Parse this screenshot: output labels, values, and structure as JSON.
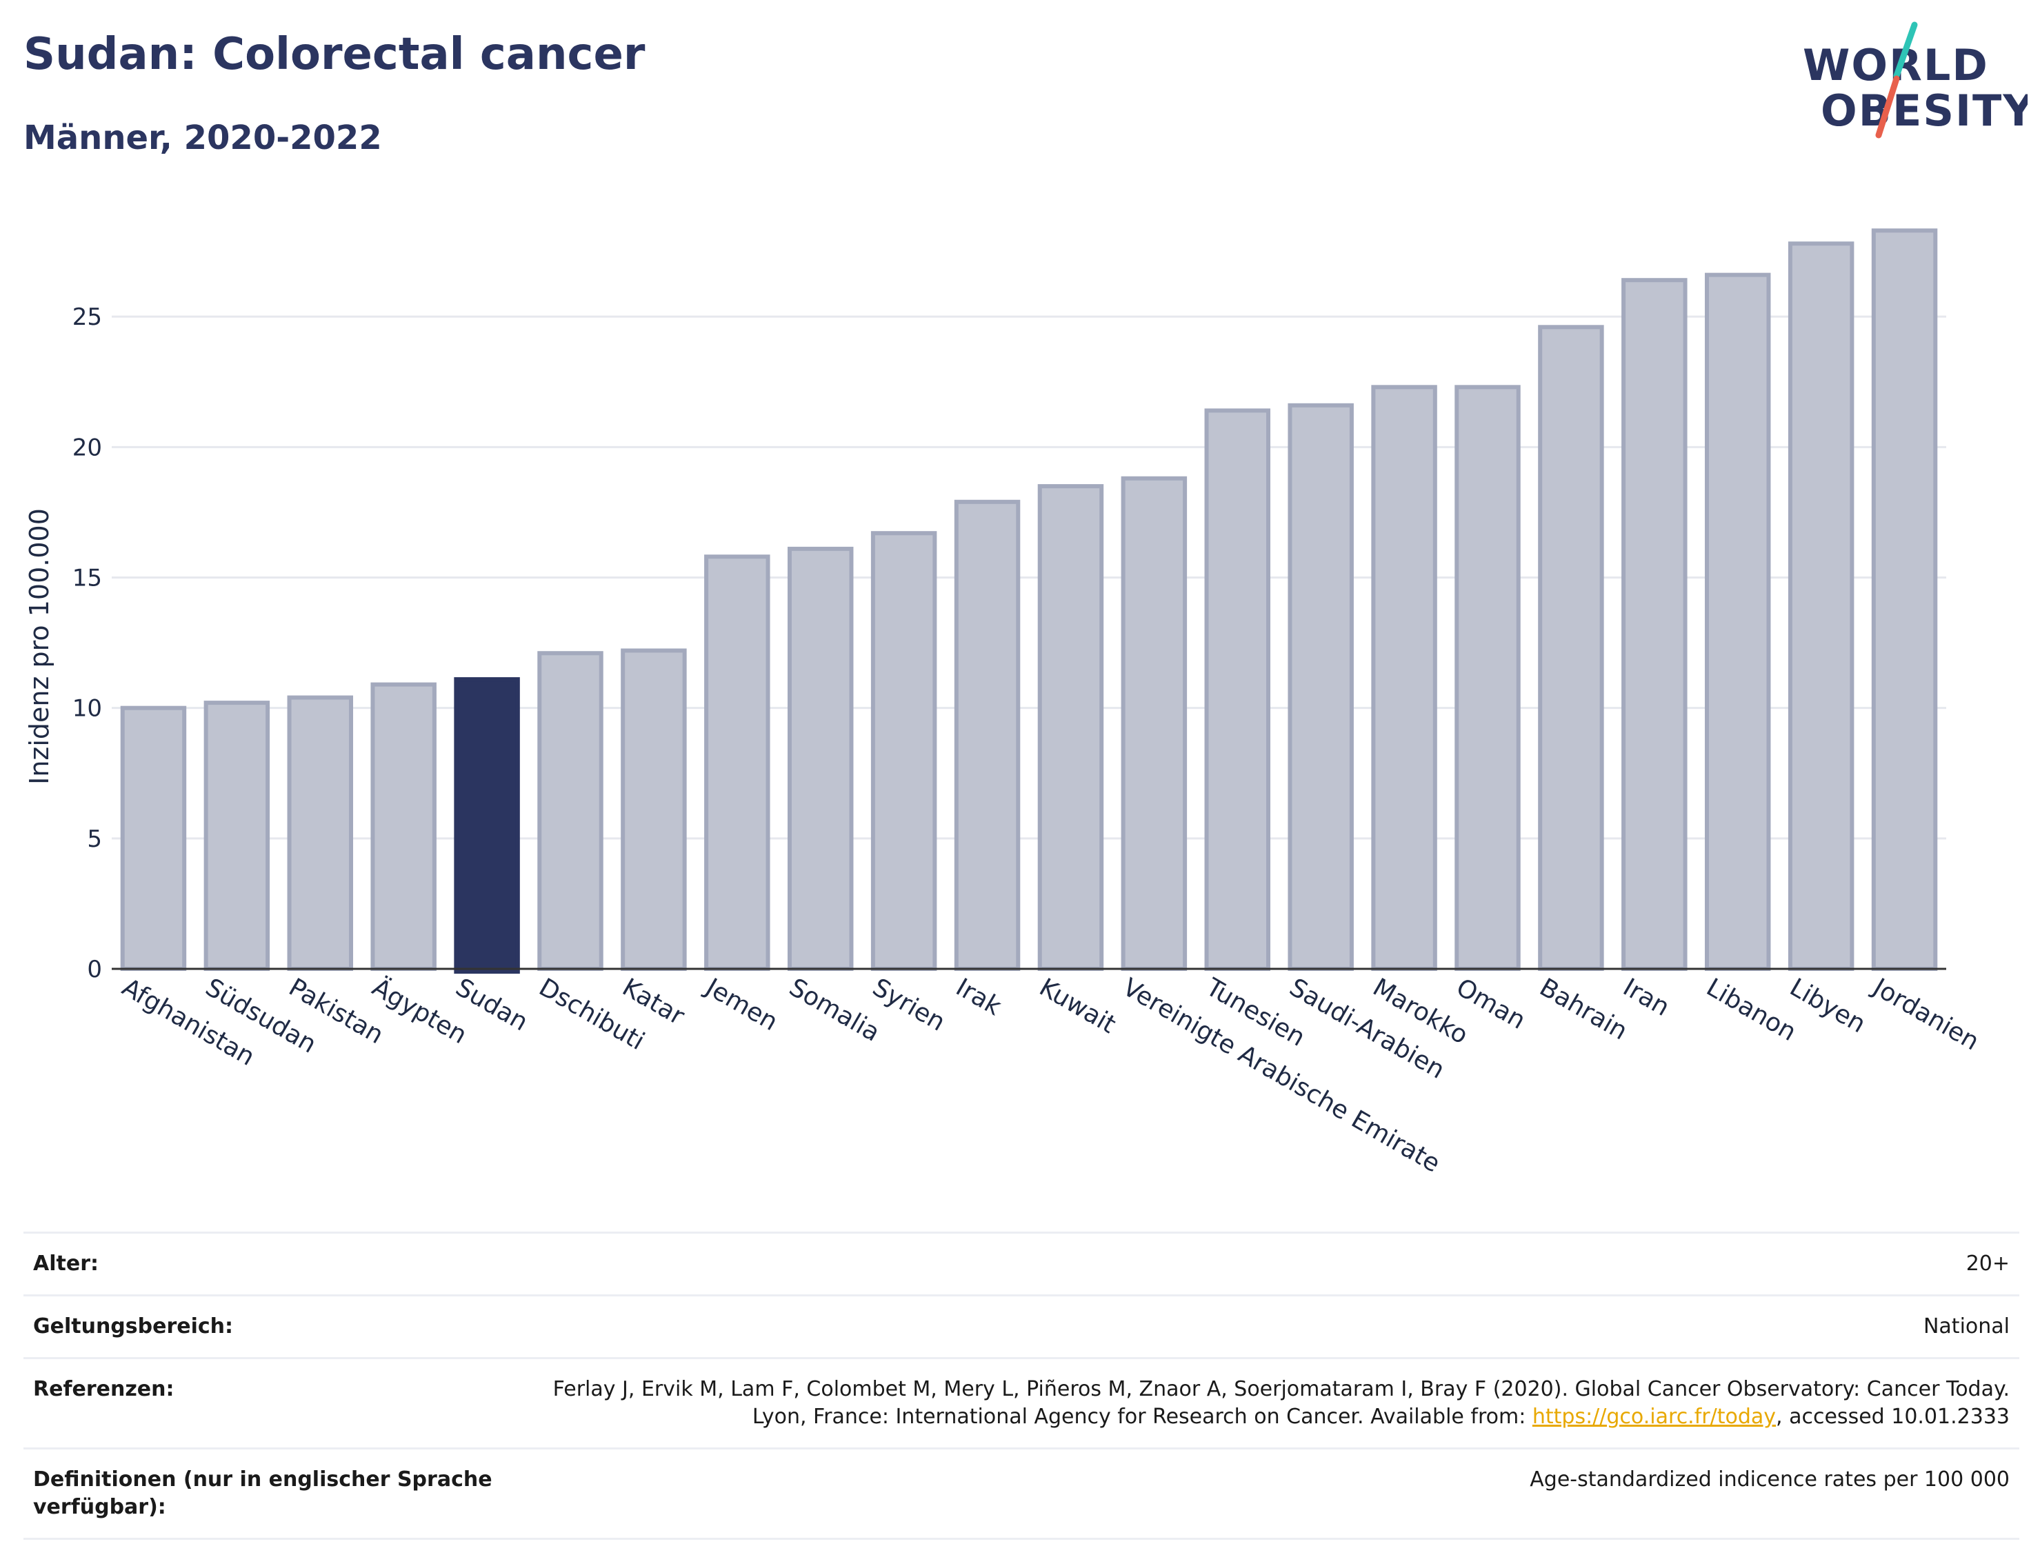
{
  "header": {
    "title": "Sudan: Colorectal cancer",
    "subtitle": "Männer, 2020-2022"
  },
  "logo": {
    "line1": "WORLD",
    "line2": "OBESITY",
    "accent_colors": [
      "#2ec4b6",
      "#e8604c"
    ]
  },
  "chart_data": {
    "type": "bar",
    "ylabel": "Inzidenz pro 100.000",
    "xlabel": "",
    "ylim": [
      0,
      30
    ],
    "yticks": [
      0,
      5,
      10,
      15,
      20,
      25
    ],
    "grid": true,
    "highlight": "Sudan",
    "colors": {
      "default": "#bfc3d0",
      "default_border": "#a3a9bd",
      "highlight": "#2b3560"
    },
    "categories": [
      "Afghanistan",
      "Südsudan",
      "Pakistan",
      "Ägypten",
      "Sudan",
      "Dschibuti",
      "Katar",
      "Jemen",
      "Somalia",
      "Syrien",
      "Irak",
      "Kuwait",
      "Vereinigte Arabische Emirate",
      "Tunesien",
      "Saudi-Arabien",
      "Marokko",
      "Oman",
      "Bahrain",
      "Iran",
      "Libanon",
      "Libyen",
      "Jordanien"
    ],
    "values": [
      10.0,
      10.2,
      10.4,
      10.9,
      11.1,
      12.1,
      12.2,
      15.8,
      16.1,
      16.7,
      17.9,
      18.5,
      18.8,
      21.4,
      21.6,
      22.3,
      22.3,
      24.6,
      26.4,
      26.6,
      27.8,
      28.3
    ]
  },
  "info": {
    "rows": [
      {
        "label": "Alter:",
        "value": "20+"
      },
      {
        "label": "Geltungsbereich:",
        "value": "National"
      },
      {
        "label": "Referenzen:",
        "value": "Ferlay J, Ervik M, Lam F, Colombet M, Mery L, Piñeros M, Znaor A, Soerjomataram I, Bray F (2020). Global Cancer Observatory: Cancer Today. Lyon, France: International Agency for Research on Cancer. Available from: ",
        "link": "https://gco.iarc.fr/today",
        "suffix": ", accessed 10.01.2333"
      },
      {
        "label": "Definitionen (nur in englischer Sprache verfügbar):",
        "value": "Age-standardized indicence rates per 100 000"
      }
    ]
  }
}
